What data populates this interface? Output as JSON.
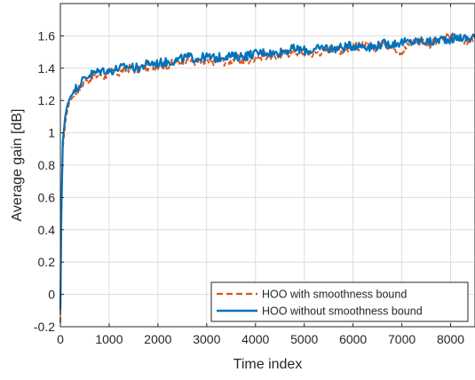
{
  "chart_data": {
    "type": "line",
    "title": "",
    "xlabel": "Time index",
    "ylabel": "Average gain [dB]",
    "xlim": [
      0,
      8500
    ],
    "ylim": [
      -0.2,
      1.8
    ],
    "x_ticks": [
      0,
      1000,
      2000,
      3000,
      4000,
      5000,
      6000,
      7000,
      8000
    ],
    "x_tick_labels": [
      "0",
      "1000",
      "2000",
      "3000",
      "4000",
      "5000",
      "6000",
      "7000",
      "8000"
    ],
    "y_ticks": [
      -0.2,
      0,
      0.2,
      0.4,
      0.6,
      0.8,
      1,
      1.2,
      1.4,
      1.6
    ],
    "y_tick_labels": [
      "-0.2",
      "0",
      "0.2",
      "0.4",
      "0.6",
      "0.8",
      "1",
      "1.2",
      "1.4",
      "1.6"
    ],
    "grid": true,
    "legend_position": "bottom-right",
    "series": [
      {
        "name": "HOO with smoothness bound",
        "color": "#D95319",
        "style": "dashed",
        "x": [
          0,
          20,
          50,
          100,
          150,
          200,
          300,
          400,
          500,
          600,
          700,
          800,
          900,
          1000,
          1200,
          1400,
          1600,
          1800,
          2000,
          2200,
          2400,
          2600,
          2800,
          3000,
          3200,
          3400,
          3600,
          3800,
          4000,
          4200,
          4400,
          4600,
          4800,
          5000,
          5200,
          5400,
          5600,
          5800,
          6000,
          6200,
          6400,
          6600,
          6800,
          7000,
          7200,
          7400,
          7600,
          7800,
          8000,
          8200,
          8400,
          8500
        ],
        "y": [
          -0.18,
          0.45,
          0.9,
          1.06,
          1.15,
          1.2,
          1.24,
          1.28,
          1.32,
          1.33,
          1.35,
          1.36,
          1.35,
          1.38,
          1.37,
          1.4,
          1.39,
          1.41,
          1.42,
          1.42,
          1.44,
          1.45,
          1.44,
          1.43,
          1.45,
          1.44,
          1.46,
          1.44,
          1.47,
          1.48,
          1.47,
          1.49,
          1.5,
          1.5,
          1.49,
          1.51,
          1.52,
          1.51,
          1.53,
          1.54,
          1.52,
          1.55,
          1.54,
          1.5,
          1.56,
          1.57,
          1.55,
          1.57,
          1.6,
          1.58,
          1.57,
          1.59
        ]
      },
      {
        "name": "HOO without smoothness bound",
        "color": "#0072BD",
        "style": "solid",
        "x": [
          0,
          20,
          50,
          100,
          150,
          200,
          300,
          400,
          500,
          600,
          700,
          800,
          900,
          1000,
          1200,
          1400,
          1600,
          1800,
          2000,
          2200,
          2400,
          2600,
          2800,
          3000,
          3200,
          3400,
          3600,
          3800,
          4000,
          4200,
          4400,
          4600,
          4800,
          5000,
          5200,
          5400,
          5600,
          5800,
          6000,
          6200,
          6400,
          6600,
          6800,
          7000,
          7200,
          7400,
          7600,
          7800,
          8000,
          8200,
          8400,
          8500
        ],
        "y": [
          -0.1,
          0.5,
          0.95,
          1.1,
          1.18,
          1.22,
          1.27,
          1.3,
          1.34,
          1.36,
          1.37,
          1.38,
          1.39,
          1.38,
          1.4,
          1.41,
          1.4,
          1.43,
          1.43,
          1.44,
          1.45,
          1.47,
          1.46,
          1.47,
          1.46,
          1.48,
          1.47,
          1.48,
          1.49,
          1.5,
          1.49,
          1.51,
          1.52,
          1.51,
          1.51,
          1.53,
          1.52,
          1.53,
          1.54,
          1.54,
          1.53,
          1.55,
          1.55,
          1.56,
          1.56,
          1.57,
          1.56,
          1.58,
          1.58,
          1.59,
          1.58,
          1.61
        ]
      }
    ]
  }
}
